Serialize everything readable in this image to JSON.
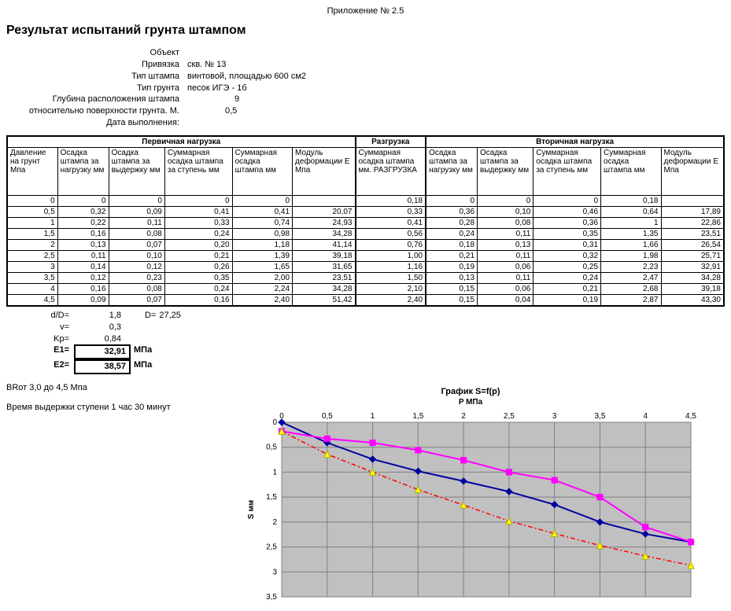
{
  "appendix": "Приложение № 2.5",
  "title": "Результат испытаний грунта штампом",
  "meta": {
    "object_label": "Объект",
    "object_val": "",
    "binding_label": "Привязка",
    "binding_val": "скв. № 13",
    "stamp_type_label": "Тип штампа",
    "stamp_type_val": "винтовой, площадью 600 см2",
    "soil_type_label": "Тип грунта",
    "soil_type_val": "песок        ИГЭ - 1б",
    "depth_label": "Глубина расположения штампа",
    "depth_val": "9",
    "surface_label": "относительно поверхности грунта. М.",
    "surface_val": "0,5",
    "date_label": "Дата выполнения:",
    "date_val": ""
  },
  "table": {
    "group_headers": [
      "Первичная нагрузка",
      "Разгрузка",
      "Вторичная нагрузка"
    ],
    "col_headers": [
      "Давление на грунт Мпа",
      "Осадка штампа за нагрузку мм",
      "Осадка штампа за выдержку мм",
      "Суммарная осадка штампа за ступень мм",
      "Суммарная осадка штампа мм",
      "Модуль деформации Е Мпа",
      "Суммарная осадка штампа мм. РАЗГРУЗКА",
      "Осадка штампа за нагрузку мм",
      "Осадка штампа за выдержку мм",
      "Суммарная осадка штампа за ступень мм",
      "Суммарная осадка штампа мм",
      "Модуль деформации Е Мпа"
    ],
    "rows": [
      [
        "0",
        "0",
        "0",
        "0",
        "0",
        "",
        "0,18",
        "0",
        "0",
        "0",
        "0,18",
        ""
      ],
      [
        "0,5",
        "0,32",
        "0,09",
        "0,41",
        "0,41",
        "20,07",
        "0,33",
        "0,36",
        "0,10",
        "0,46",
        "0,64",
        "17,89"
      ],
      [
        "1",
        "0,22",
        "0,11",
        "0,33",
        "0,74",
        "24,93",
        "0,41",
        "0,28",
        "0,08",
        "0,36",
        "1",
        "22,86"
      ],
      [
        "1,5",
        "0,16",
        "0,08",
        "0,24",
        "0,98",
        "34,28",
        "0,56",
        "0,24",
        "0,11",
        "0,35",
        "1,35",
        "23,51"
      ],
      [
        "2",
        "0,13",
        "0,07",
        "0,20",
        "1,18",
        "41,14",
        "0,76",
        "0,18",
        "0,13",
        "0,31",
        "1,66",
        "26,54"
      ],
      [
        "2,5",
        "0,11",
        "0,10",
        "0,21",
        "1,39",
        "39,18",
        "1,00",
        "0,21",
        "0,11",
        "0,32",
        "1,98",
        "25,71"
      ],
      [
        "3",
        "0,14",
        "0,12",
        "0,26",
        "1,65",
        "31,65",
        "1,16",
        "0,19",
        "0,06",
        "0,25",
        "2,23",
        "32,91"
      ],
      [
        "3,5",
        "0,12",
        "0,23",
        "0,35",
        "2,00",
        "23,51",
        "1,50",
        "0,13",
        "0,11",
        "0,24",
        "2,47",
        "34,28"
      ],
      [
        "4",
        "0,16",
        "0,08",
        "0,24",
        "2,24",
        "34,28",
        "2,10",
        "0,15",
        "0,06",
        "0,21",
        "2,68",
        "39,18"
      ],
      [
        "4,5",
        "0,09",
        "0,07",
        "0,16",
        "2,40",
        "51,42",
        "2,40",
        "0,15",
        "0,04",
        "0,19",
        "2,87",
        "43,30"
      ]
    ]
  },
  "params": {
    "dD_label": "d/D=",
    "dD_val": "1,8",
    "D_label": "D=",
    "D_val": "27,25",
    "v_label": "v=",
    "v_val": "0,3",
    "Kp_label": "Kp=",
    "Kp_val": "0,84",
    "E1_label": "Е1=",
    "E1_val": "32,91",
    "E1_unit": "МПа",
    "E2_label": "Е2=",
    "E2_val": "38,57",
    "E2_unit": "МПа"
  },
  "notes": {
    "range": "ВRот 3,0 до 4,5 Мпа",
    "hold": "Время выдержки ступени 1 час 30 минут"
  },
  "chart": {
    "title": "График S=f(p)",
    "xlabel": "P МПа",
    "ylabel": "S мм",
    "x_ticks": [
      0,
      0.5,
      1,
      1.5,
      2,
      2.5,
      3,
      3.5,
      4,
      4.5
    ],
    "x_tick_labels": [
      "0",
      "0,5",
      "1",
      "1,5",
      "2",
      "2,5",
      "3",
      "3,5",
      "4",
      "4,5"
    ],
    "y_ticks": [
      0,
      0.5,
      1,
      1.5,
      2,
      2.5,
      3,
      3.5
    ],
    "y_tick_labels": [
      "0",
      "0,5",
      "1",
      "1,5",
      "2",
      "2,5",
      "3",
      "3,5"
    ],
    "xlim": [
      0,
      4.5
    ],
    "ylim": [
      0,
      3.5
    ],
    "plot_bg": "#c0c0c0",
    "series": {
      "primary": {
        "color": "#0000a0",
        "marker": "diamond",
        "x": [
          0,
          0.5,
          1,
          1.5,
          2,
          2.5,
          3,
          3.5,
          4,
          4.5
        ],
        "y": [
          0,
          0.41,
          0.74,
          0.98,
          1.18,
          1.39,
          1.65,
          2.0,
          2.24,
          2.4
        ]
      },
      "unload": {
        "color": "#ff00ff",
        "marker": "square",
        "x": [
          0,
          0.5,
          1,
          1.5,
          2,
          2.5,
          3,
          3.5,
          4,
          4.5
        ],
        "y": [
          0.18,
          0.33,
          0.41,
          0.56,
          0.76,
          1.0,
          1.16,
          1.5,
          2.1,
          2.4
        ]
      },
      "secondary": {
        "color_line": "#000000",
        "marker_color": "#ff00ff",
        "marker": "square",
        "x": [
          0,
          0.5,
          1,
          1.5,
          2,
          2.5,
          3,
          3.5,
          4,
          4.5
        ],
        "y": [
          0.18,
          0.33,
          0.41,
          0.56,
          0.76,
          1.0,
          1.16,
          1.5,
          2.1,
          2.4
        ]
      },
      "secondary2": {
        "color": "#ff0000",
        "marker": "triangle",
        "marker_fill": "#ffff00",
        "x": [
          0,
          0.5,
          1,
          1.5,
          2,
          2.5,
          3,
          3.5,
          4,
          4.5
        ],
        "y": [
          0.18,
          0.64,
          1.0,
          1.35,
          1.66,
          1.98,
          2.23,
          2.47,
          2.68,
          2.87
        ]
      }
    }
  }
}
